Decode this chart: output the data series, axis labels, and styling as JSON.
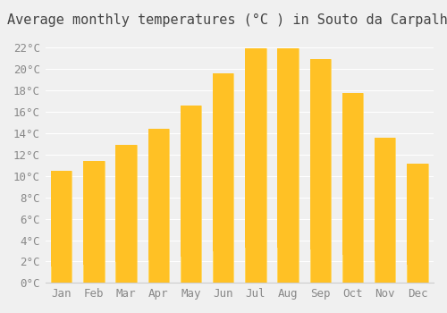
{
  "title": "Average monthly temperatures (°C ) in Souto da Carpalhosa",
  "months": [
    "Jan",
    "Feb",
    "Mar",
    "Apr",
    "May",
    "Jun",
    "Jul",
    "Aug",
    "Sep",
    "Oct",
    "Nov",
    "Dec"
  ],
  "values": [
    10.5,
    11.4,
    12.9,
    14.4,
    16.6,
    19.6,
    21.9,
    21.9,
    20.9,
    17.7,
    13.6,
    11.1
  ],
  "bar_color_top": "#FFC125",
  "bar_color_bottom": "#FFD966",
  "background_color": "#F0F0F0",
  "yticks": [
    0,
    2,
    4,
    6,
    8,
    10,
    12,
    14,
    16,
    18,
    20,
    22
  ],
  "ylim": [
    0,
    23
  ],
  "title_fontsize": 11,
  "tick_fontsize": 9
}
